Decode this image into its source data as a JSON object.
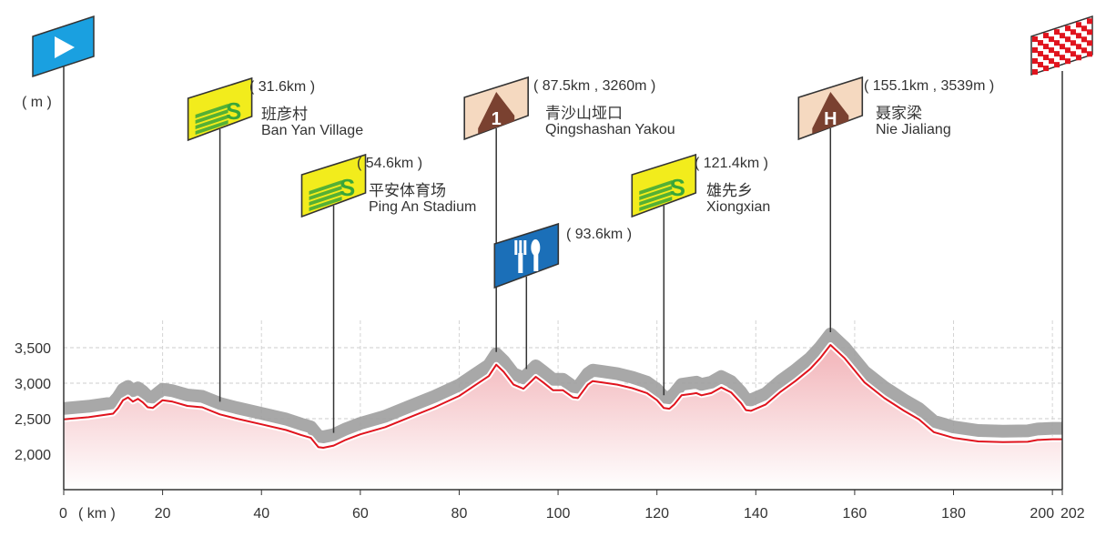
{
  "chart_data": {
    "type": "area",
    "title": "",
    "xlabel": "( km )",
    "ylabel": "( m )",
    "xlim": [
      0,
      202
    ],
    "ylim": [
      1500,
      3900
    ],
    "x_ticks": [
      {
        "value": 0,
        "label": "0"
      },
      {
        "value": 20,
        "label": "20"
      },
      {
        "value": 40,
        "label": "40"
      },
      {
        "value": 60,
        "label": "60"
      },
      {
        "value": 80,
        "label": "80"
      },
      {
        "value": 100,
        "label": "100"
      },
      {
        "value": 120,
        "label": "120"
      },
      {
        "value": 140,
        "label": "140"
      },
      {
        "value": 160,
        "label": "160"
      },
      {
        "value": 180,
        "label": "180"
      },
      {
        "value": 200,
        "label": "200"
      },
      {
        "value": 202,
        "label": "202"
      }
    ],
    "y_ticks": [
      {
        "value": 2000,
        "label": "2,000"
      },
      {
        "value": 2500,
        "label": "2,500"
      },
      {
        "value": 3000,
        "label": "3,000"
      },
      {
        "value": 3500,
        "label": "3,500"
      }
    ],
    "grid": true,
    "colors": {
      "fill_top": "#f2b3b8",
      "fill_bottom": "#ffffff",
      "line": "#e0141e",
      "shadow": "#9e9e9e",
      "sprint_sign": "#f2ec1c",
      "sprint_letter": "#3aa639",
      "climb_sign": "#f5d9c0",
      "climb_icon": "#7a4130",
      "feed_sign": "#1b6fb8",
      "start_sign": "#1aa0e0",
      "finish_check": "#e0141e"
    },
    "profile": {
      "x": [
        0,
        5,
        10,
        11,
        12,
        13,
        14,
        15,
        16,
        17,
        18,
        20,
        22,
        25,
        28,
        31.6,
        35,
        40,
        45,
        48,
        50,
        51.5,
        52.5,
        54.6,
        57,
        60,
        65,
        70,
        75,
        80,
        83,
        86,
        87.5,
        89,
        91,
        93,
        94.5,
        95.5,
        97,
        99,
        101,
        103,
        104,
        106,
        107,
        109,
        112,
        115,
        118,
        120,
        121.4,
        122.5,
        123.5,
        125,
        127,
        128,
        129,
        131,
        133,
        135,
        137,
        138,
        139,
        142,
        145,
        148,
        151,
        153,
        155.1,
        158,
        162,
        166,
        170,
        173,
        176,
        180,
        185,
        190,
        195,
        197,
        200,
        202
      ],
      "y": [
        2490,
        2520,
        2570,
        2650,
        2760,
        2800,
        2740,
        2780,
        2730,
        2660,
        2650,
        2760,
        2740,
        2680,
        2660,
        2560,
        2500,
        2420,
        2340,
        2270,
        2230,
        2100,
        2090,
        2120,
        2200,
        2280,
        2380,
        2520,
        2660,
        2820,
        2960,
        3100,
        3260,
        3160,
        2980,
        2920,
        3020,
        3090,
        3010,
        2900,
        2900,
        2800,
        2790,
        2980,
        3030,
        3010,
        2980,
        2930,
        2860,
        2760,
        2650,
        2640,
        2700,
        2830,
        2850,
        2860,
        2830,
        2860,
        2940,
        2870,
        2720,
        2620,
        2610,
        2700,
        2880,
        3030,
        3200,
        3350,
        3539,
        3350,
        3010,
        2790,
        2610,
        2490,
        2310,
        2230,
        2180,
        2170,
        2175,
        2200,
        2210,
        2210
      ]
    },
    "start_km": 0,
    "finish_km": 202,
    "markers": [
      {
        "type": "sprint",
        "km": 31.6,
        "letter": "S",
        "km_label": "( 31.6km )",
        "name_cn": "班彦村",
        "name_en": "Ban Yan Village"
      },
      {
        "type": "sprint",
        "km": 54.6,
        "letter": "S",
        "km_label": "( 54.6km )",
        "name_cn": "平安体育场",
        "name_en": "Ping An Stadium"
      },
      {
        "type": "climb",
        "km": 87.5,
        "letter": "1",
        "km_label": "( 87.5km , 3260m )",
        "name_cn": "青沙山垭口",
        "name_en": "Qingshashan Yakou"
      },
      {
        "type": "feed",
        "km": 93.6,
        "km_label": "( 93.6km )"
      },
      {
        "type": "sprint",
        "km": 121.4,
        "letter": "S",
        "km_label": "( 121.4km )",
        "name_cn": "雄先乡",
        "name_en": "Xiongxian"
      },
      {
        "type": "climb",
        "km": 155.1,
        "letter": "H",
        "km_label": "( 155.1km , 3539m )",
        "name_cn": "聂家梁",
        "name_en": "Nie Jialiang"
      }
    ]
  }
}
